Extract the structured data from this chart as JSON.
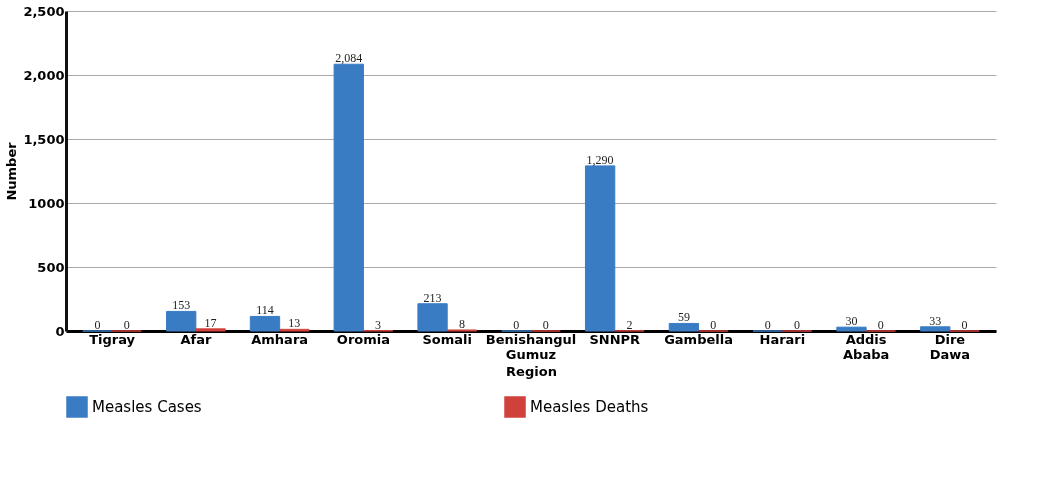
{
  "chart_data": {
    "type": "bar",
    "xlabel": "Region",
    "ylabel": "Number",
    "categories": [
      "Tigray",
      "Afar",
      "Amhara",
      "Oromia",
      "Somali",
      "Benishangul Gumuz",
      "SNNPR",
      "Gambella",
      "Harari",
      "Addis Ababa",
      "Dire Dawa"
    ],
    "series": [
      {
        "name": "Measles Cases",
        "color": "#3a7cc4",
        "values": [
          0,
          153,
          114,
          2084,
          213,
          0,
          1290,
          59,
          0,
          30,
          33
        ],
        "value_labels": [
          "0",
          "153",
          "114",
          "2,084",
          "213",
          "0",
          "1,290",
          "59",
          "0",
          "30",
          "33"
        ]
      },
      {
        "name": "Measles Deaths",
        "color": "#d0413c",
        "values": [
          0,
          17,
          13,
          3,
          8,
          0,
          2,
          0,
          0,
          0,
          0
        ],
        "value_labels": [
          "0",
          "17",
          "13",
          "3",
          "8",
          "0",
          "2",
          "0",
          "0",
          "0",
          "0"
        ]
      }
    ],
    "ylim": [
      0,
      2500
    ],
    "yticks": [
      0,
      500,
      1000,
      {
        "value": 1500,
        "label": "1,500"
      },
      {
        "value": 2000,
        "label": "2,000"
      },
      {
        "value": 2500,
        "label": "2,500"
      }
    ],
    "grid": "y",
    "legend": "bottom"
  }
}
